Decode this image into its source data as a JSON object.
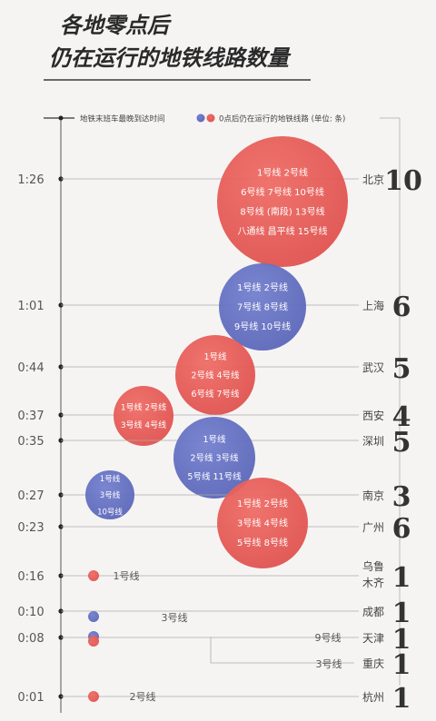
{
  "title_line1": "各地零点后",
  "title_line2": "仍在运行的地铁线路数量",
  "chart_data": {
    "type": "bubble",
    "legend": {
      "time_label": "地铁末班车最晚到达时间",
      "lines_label": "0点后仍在运行的地铁线路 (单位: 条)"
    },
    "colors": {
      "red": "#e0524f",
      "blue": "#5b67b9",
      "axis": "#555555",
      "guide": "#aaaaaa"
    },
    "cities": [
      {
        "city": "北京",
        "time": "1:26",
        "minutes": 86,
        "count": 10,
        "color": "red",
        "lines": [
          "1号线  2号线",
          "6号线  7号线  10号线",
          "8号线 (南段)  13号线",
          "八通线  昌平线  15号线"
        ]
      },
      {
        "city": "上海",
        "time": "1:01",
        "minutes": 61,
        "count": 6,
        "color": "blue",
        "lines": [
          "1号线  2号线",
          "7号线  8号线",
          "9号线  10号线"
        ]
      },
      {
        "city": "武汉",
        "time": "0:44",
        "minutes": 44,
        "count": 5,
        "color": "red",
        "lines": [
          "1号线",
          "2号线  4号线",
          "6号线  7号线"
        ]
      },
      {
        "city": "西安",
        "time": "0:37",
        "minutes": 37,
        "count": 4,
        "color": "red",
        "lines": [
          "1号线  2号线",
          "3号线  4号线"
        ]
      },
      {
        "city": "深圳",
        "time": "0:35",
        "minutes": 35,
        "count": 5,
        "color": "blue",
        "lines": [
          "1号线",
          "2号线  3号线",
          "5号线  11号线"
        ]
      },
      {
        "city": "南京",
        "time": "0:27",
        "minutes": 27,
        "count": 3,
        "color": "blue",
        "lines": [
          "1号线",
          "3号线",
          "10号线"
        ]
      },
      {
        "city": "广州",
        "time": "0:23",
        "minutes": 23,
        "count": 6,
        "color": "red",
        "lines": [
          "1号线  2号线",
          "3号线  4号线",
          "5号线  8号线"
        ]
      },
      {
        "city": "乌鲁木齐",
        "city_lines": [
          "乌鲁",
          "木齐"
        ],
        "time": "0:16",
        "minutes": 16,
        "count": 1,
        "color": "red",
        "lines": [
          "1号线"
        ]
      },
      {
        "city": "成都",
        "time": "0:10",
        "minutes": 10,
        "count": 1,
        "color": "blue",
        "lines": [
          "3号线"
        ]
      },
      {
        "city": "天津",
        "time": "0:08",
        "minutes": 8,
        "count": 1,
        "color": "blue",
        "lines": [
          "9号线"
        ]
      },
      {
        "city": "重庆",
        "time": "0:08",
        "minutes": 8,
        "count": 1,
        "color": "red",
        "lines": [
          "3号线"
        ]
      },
      {
        "city": "杭州",
        "time": "0:01",
        "minutes": 1,
        "count": 1,
        "color": "red",
        "lines": [
          "2号线"
        ]
      }
    ]
  }
}
